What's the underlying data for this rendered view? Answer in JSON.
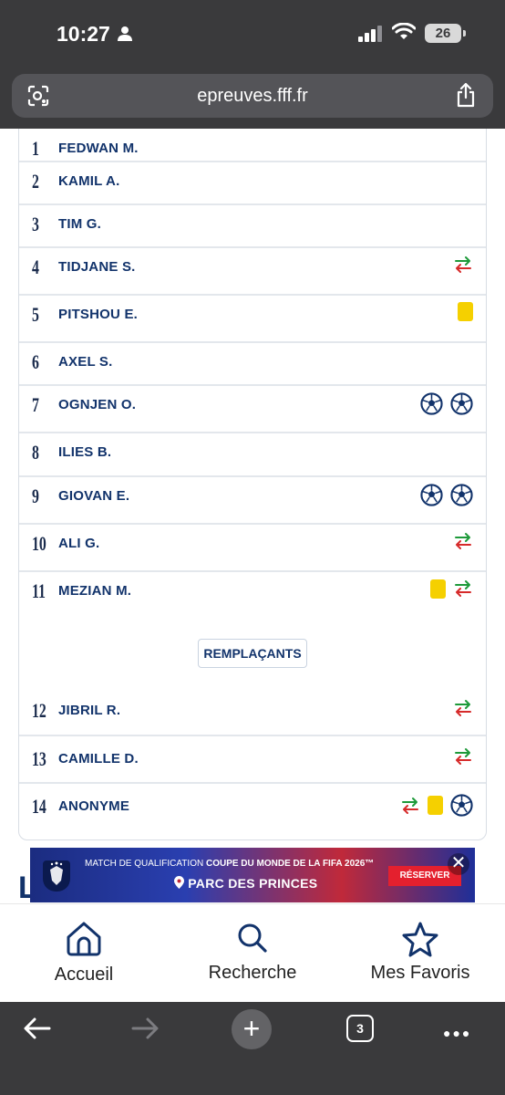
{
  "status_bar": {
    "time": "10:27",
    "battery": "26"
  },
  "browser": {
    "url": "epreuves.fff.fr",
    "tab_count": "3"
  },
  "lineup": [
    {
      "number": "1",
      "name": "FEDWAN M.",
      "icons": []
    },
    {
      "number": "2",
      "name": "KAMIL A.",
      "icons": []
    },
    {
      "number": "3",
      "name": "TIM G.",
      "icons": []
    },
    {
      "number": "4",
      "name": "TIDJANE S.",
      "icons": [
        "substitution-icon"
      ]
    },
    {
      "number": "5",
      "name": "PITSHOU E.",
      "icons": [
        "yellow-card-icon"
      ]
    },
    {
      "number": "6",
      "name": "AXEL S.",
      "icons": []
    },
    {
      "number": "7",
      "name": "OGNJEN O.",
      "icons": [
        "goal-ball-icon",
        "goal-ball-icon"
      ]
    },
    {
      "number": "8",
      "name": "ILIES B.",
      "icons": []
    },
    {
      "number": "9",
      "name": "GIOVAN E.",
      "icons": [
        "goal-ball-icon",
        "goal-ball-icon"
      ]
    },
    {
      "number": "10",
      "name": "ALI G.",
      "icons": [
        "substitution-icon"
      ]
    },
    {
      "number": "11",
      "name": "MEZIAN M.",
      "icons": [
        "yellow-card-icon",
        "substitution-icon"
      ]
    }
  ],
  "substitutes_label": "REMPLAÇANTS",
  "substitutes": [
    {
      "number": "12",
      "name": "JIBRIL R.",
      "icons": [
        "substitution-icon"
      ]
    },
    {
      "number": "13",
      "name": "CAMILLE D.",
      "icons": [
        "substitution-icon"
      ]
    },
    {
      "number": "14",
      "name": "ANONYME",
      "icons": [
        "substitution-icon",
        "yellow-card-icon",
        "goal-ball-icon"
      ]
    }
  ],
  "section_letter": "L",
  "banner": {
    "line1_prefix": "MATCH DE QUALIFICATION ",
    "line1_bold": "COUPE DU MONDE DE LA FIFA 2026™",
    "line2": "PARC DES PRINCES",
    "button": "RÉSERVER",
    "close": "✕"
  },
  "bottom_nav": {
    "home": "Accueil",
    "search": "Recherche",
    "favorites": "Mes Favoris"
  },
  "colors": {
    "navy": "#12336b",
    "yellow_card": "#f5d000",
    "sub_green": "#1e9a3a",
    "sub_red": "#d62a2a",
    "browser_chrome": "#3a3a3c"
  }
}
